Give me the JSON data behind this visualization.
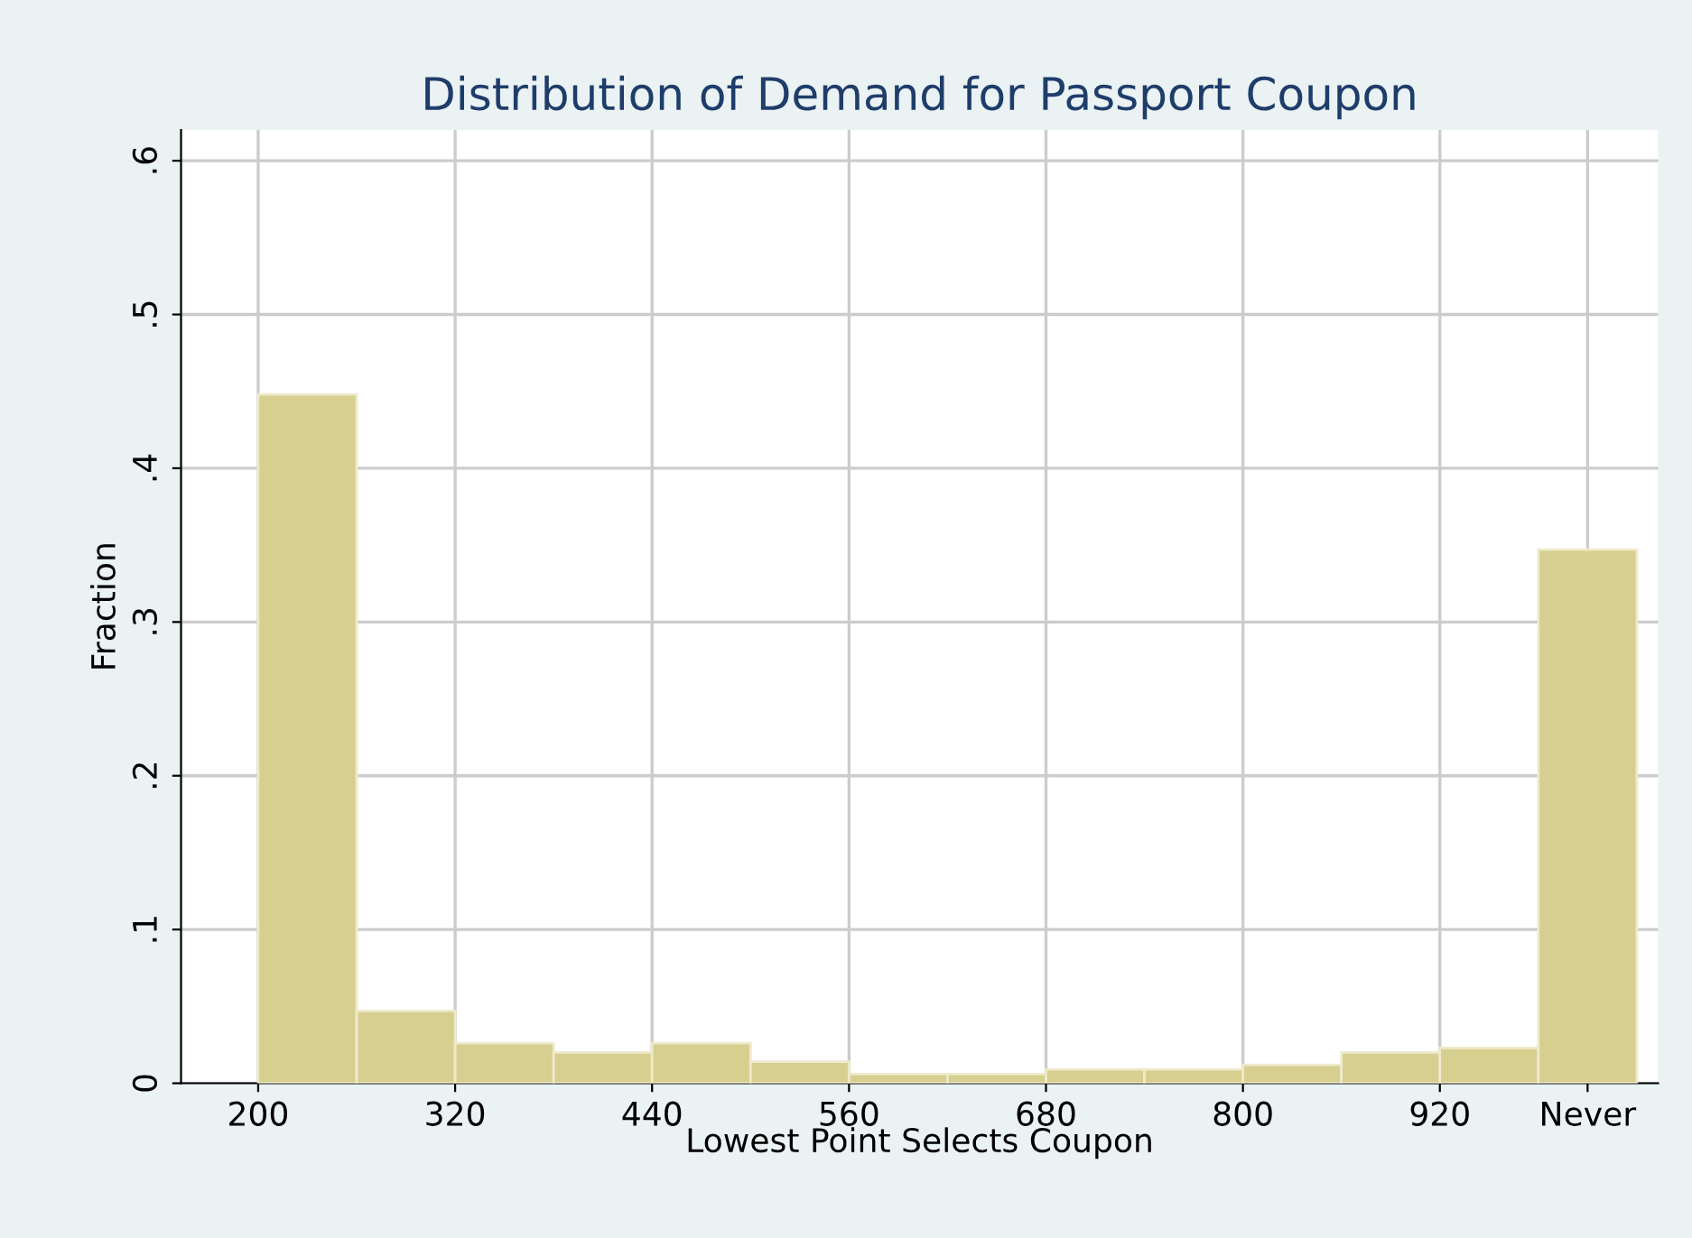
{
  "chart_data": {
    "type": "histogram",
    "title": "Distribution of Demand for Passport Coupon",
    "xlabel": "Lowest Point Selects Coupon",
    "ylabel": "Fraction",
    "bins": [
      200,
      260,
      320,
      380,
      440,
      500,
      560,
      620,
      680,
      740,
      800,
      860,
      920,
      980,
      1040
    ],
    "values": [
      0.448,
      0.047,
      0.026,
      0.02,
      0.026,
      0.014,
      0.006,
      0.006,
      0.009,
      0.009,
      0.012,
      0.02,
      0.023,
      0.347
    ],
    "color": "#d6cf8f",
    "xlim": [
      153,
      1053
    ],
    "ylim": [
      0,
      0.62
    ],
    "xticks": [
      200,
      320,
      440,
      560,
      680,
      800,
      920,
      {
        "value": 1010,
        "label": "Never"
      }
    ],
    "yticks": [
      {
        "value": 0,
        "label": "0"
      },
      {
        "value": 0.1,
        "label": ".1"
      },
      {
        "value": 0.2,
        "label": ".2"
      },
      {
        "value": 0.3,
        "label": ".3"
      },
      {
        "value": 0.4,
        "label": ".4"
      },
      {
        "value": 0.5,
        "label": ".5"
      },
      {
        "value": 0.6,
        "label": ".6"
      }
    ],
    "grid": true
  }
}
